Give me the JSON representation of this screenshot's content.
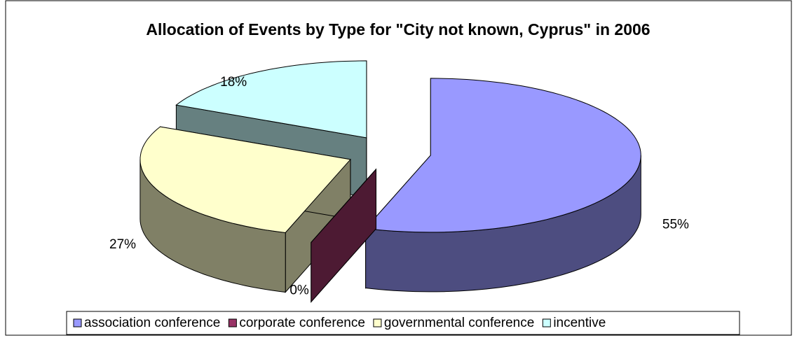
{
  "chart_data": {
    "type": "pie3d",
    "title": "Allocation of Events by Type for \"City not known, Cyprus\" in 2006",
    "categories": [
      "association conference",
      "corporate conference",
      "governmental conference",
      "incentive"
    ],
    "values": [
      55,
      0,
      27,
      18
    ],
    "value_labels": [
      "55%",
      "0%",
      "27%",
      "18%"
    ],
    "colors": [
      "#9999ff",
      "#993366",
      "#ffffcc",
      "#ccffff"
    ],
    "legend": "bottom"
  }
}
